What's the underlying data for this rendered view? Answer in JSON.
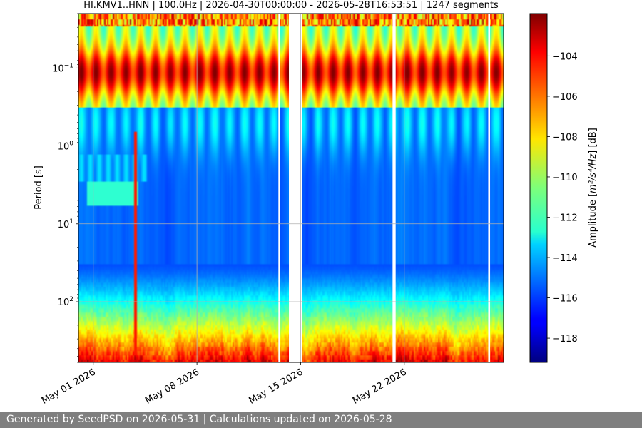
{
  "chart_data": {
    "type": "heatmap",
    "title": "HI.KMV1..HNN | 100.0Hz | 2026-04-30T00:00:00 - 2026-05-28T16:53:51 | 1247 segments",
    "ylabel": "Period [s]",
    "xlabel": "",
    "y_scale": "log",
    "y_inverted": true,
    "y_range": [
      0.02,
      600
    ],
    "y_ticks": [
      {
        "value": 0.1,
        "base": "10",
        "exp": "−1"
      },
      {
        "value": 1,
        "base": "10",
        "exp": "0"
      },
      {
        "value": 10,
        "base": "10",
        "exp": "1"
      },
      {
        "value": 100,
        "base": "10",
        "exp": "2"
      }
    ],
    "x_range": [
      "2026-04-30",
      "2026-05-28T16:53:51"
    ],
    "x_ticks": [
      {
        "date": "2026-05-01",
        "label": "May 01 2026"
      },
      {
        "date": "2026-05-08",
        "label": "May 08 2026"
      },
      {
        "date": "2026-05-15",
        "label": "May 15 2026"
      },
      {
        "date": "2026-05-22",
        "label": "May 22 2026"
      }
    ],
    "data_gaps": [
      [
        "2026-05-13T12:00:00",
        "2026-05-13T15:00:00"
      ],
      [
        "2026-05-14T05:00:00",
        "2026-05-15T02:00:00"
      ],
      [
        "2026-05-21T05:00:00",
        "2026-05-21T10:00:00"
      ],
      [
        "2026-05-27T16:00:00",
        "2026-05-27T19:00:00"
      ]
    ],
    "grid": true,
    "colorbar": {
      "label_prefix": "Amplitude [",
      "label_math": "m²/s⁴/Hz",
      "label_suffix": "] [dB]",
      "range": [
        -119.2,
        -101.9
      ],
      "ticks": [
        -104,
        -106,
        -108,
        -110,
        -112,
        -114,
        -116,
        -118
      ],
      "tick_labels": [
        "−104",
        "−106",
        "−108",
        "−110",
        "−112",
        "−114",
        "−116",
        "−118"
      ],
      "colormap": "jet"
    },
    "segments": 1247
  },
  "footer": {
    "text": "Generated by SeedPSD on 2026-05-31 | Calculations updated on 2026-05-28"
  }
}
